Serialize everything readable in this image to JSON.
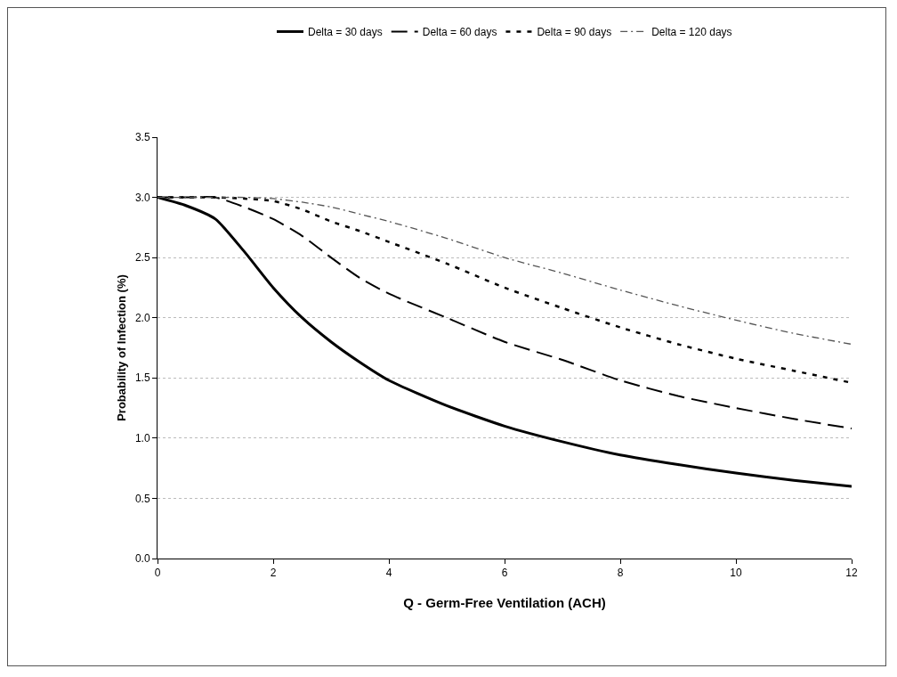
{
  "chart_data": {
    "type": "line",
    "xlabel": "Q - Germ-Free Ventilation (ACH)",
    "ylabel": "Probability of Infection (%)",
    "x": [
      0,
      0.5,
      1,
      1.5,
      2,
      2.5,
      3,
      3.5,
      4,
      5,
      6,
      7,
      8,
      9,
      10,
      11,
      12
    ],
    "series": [
      {
        "name": "Delta = 30 days",
        "color": "#000000",
        "line_style": "solid",
        "values": [
          3.0,
          2.93,
          2.82,
          2.55,
          2.25,
          2.0,
          1.8,
          1.63,
          1.48,
          1.27,
          1.1,
          0.97,
          0.86,
          0.78,
          0.71,
          0.65,
          0.6
        ]
      },
      {
        "name": "Delta = 60 days",
        "color": "#000000",
        "line_style": "dashed",
        "values": [
          3.0,
          3.0,
          3.0,
          2.92,
          2.82,
          2.68,
          2.5,
          2.33,
          2.2,
          2.0,
          1.8,
          1.65,
          1.48,
          1.35,
          1.25,
          1.16,
          1.08
        ]
      },
      {
        "name": "Delta = 90 days",
        "color": "#000000",
        "line_style": "dotted",
        "values": [
          3.0,
          3.0,
          3.0,
          2.99,
          2.97,
          2.9,
          2.8,
          2.72,
          2.63,
          2.45,
          2.25,
          2.08,
          1.92,
          1.78,
          1.66,
          1.56,
          1.46
        ]
      },
      {
        "name": "Delta = 120 days",
        "color": "#555555",
        "line_style": "dashdot",
        "values": [
          3.0,
          3.0,
          3.0,
          3.0,
          2.99,
          2.96,
          2.92,
          2.86,
          2.8,
          2.66,
          2.5,
          2.37,
          2.23,
          2.1,
          1.98,
          1.87,
          1.78
        ]
      }
    ],
    "xlim": [
      0,
      12
    ],
    "xticks": [
      0,
      2,
      4,
      6,
      8,
      10,
      12
    ],
    "ylim": [
      0,
      3.5
    ],
    "yticks": [
      {
        "value": 0,
        "label": "0.0"
      },
      {
        "value": 0.5,
        "label": "0.5"
      },
      {
        "value": 1,
        "label": "1.0"
      },
      {
        "value": 1.5,
        "label": "1.5"
      },
      {
        "value": 2,
        "label": "2.0"
      },
      {
        "value": 2.5,
        "label": "2.5"
      },
      {
        "value": 3,
        "label": "3.0"
      },
      {
        "value": 3.5,
        "label": "3.5"
      }
    ],
    "grid": "y",
    "legend": "top",
    "marker": "none"
  }
}
